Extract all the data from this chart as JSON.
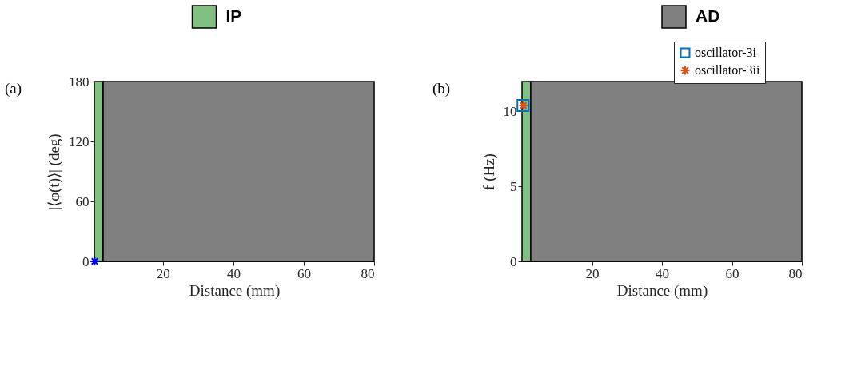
{
  "chart_data": [
    {
      "type": "scatter",
      "xlabel": "Distance (mm)",
      "ylabel": "|⟨φ(t)⟩| (deg)",
      "annotations": [
        "(a)"
      ],
      "xlim": [
        0.5,
        80
      ],
      "xticks": [
        20,
        40,
        60,
        80
      ],
      "ylim": [
        0,
        180
      ],
      "yticks": [
        0,
        60,
        120,
        180
      ],
      "grid": false,
      "legend": "top",
      "bands": [
        {
          "axis": "x",
          "from": 0.5,
          "to": 3,
          "label": "IP",
          "color": "#80c080"
        },
        {
          "axis": "x",
          "from": 3,
          "to": 80,
          "label": null,
          "color": "#808080"
        }
      ],
      "series": [
        {
          "color": "#0000ff",
          "marker": "cross",
          "x": [
            0.6
          ],
          "values": [
            0
          ]
        }
      ]
    },
    {
      "type": "scatter",
      "xlabel": "Distance (mm)",
      "ylabel": "f (Hz)",
      "annotations": [
        "(b)"
      ],
      "xlim": [
        0,
        80
      ],
      "xticks": [
        20,
        40,
        60,
        80
      ],
      "ylim": [
        0,
        12
      ],
      "yticks": [
        0,
        5,
        10
      ],
      "grid": false,
      "legend": "top right",
      "bands": [
        {
          "axis": "x",
          "from": 0,
          "to": 2.5,
          "label": null,
          "color": "#80c080"
        },
        {
          "axis": "x",
          "from": 2.5,
          "to": 80,
          "label": "AD",
          "color": "#808080"
        }
      ],
      "series": [
        {
          "name": "oscillator-3i",
          "color": "#0072bd",
          "marker": "square",
          "x": [
            0.3
          ],
          "values": [
            10.4
          ]
        },
        {
          "name": "oscillator-3ii",
          "color": "#d95319",
          "marker": "cross",
          "x": [
            0.4
          ],
          "values": [
            10.4
          ]
        }
      ]
    }
  ]
}
